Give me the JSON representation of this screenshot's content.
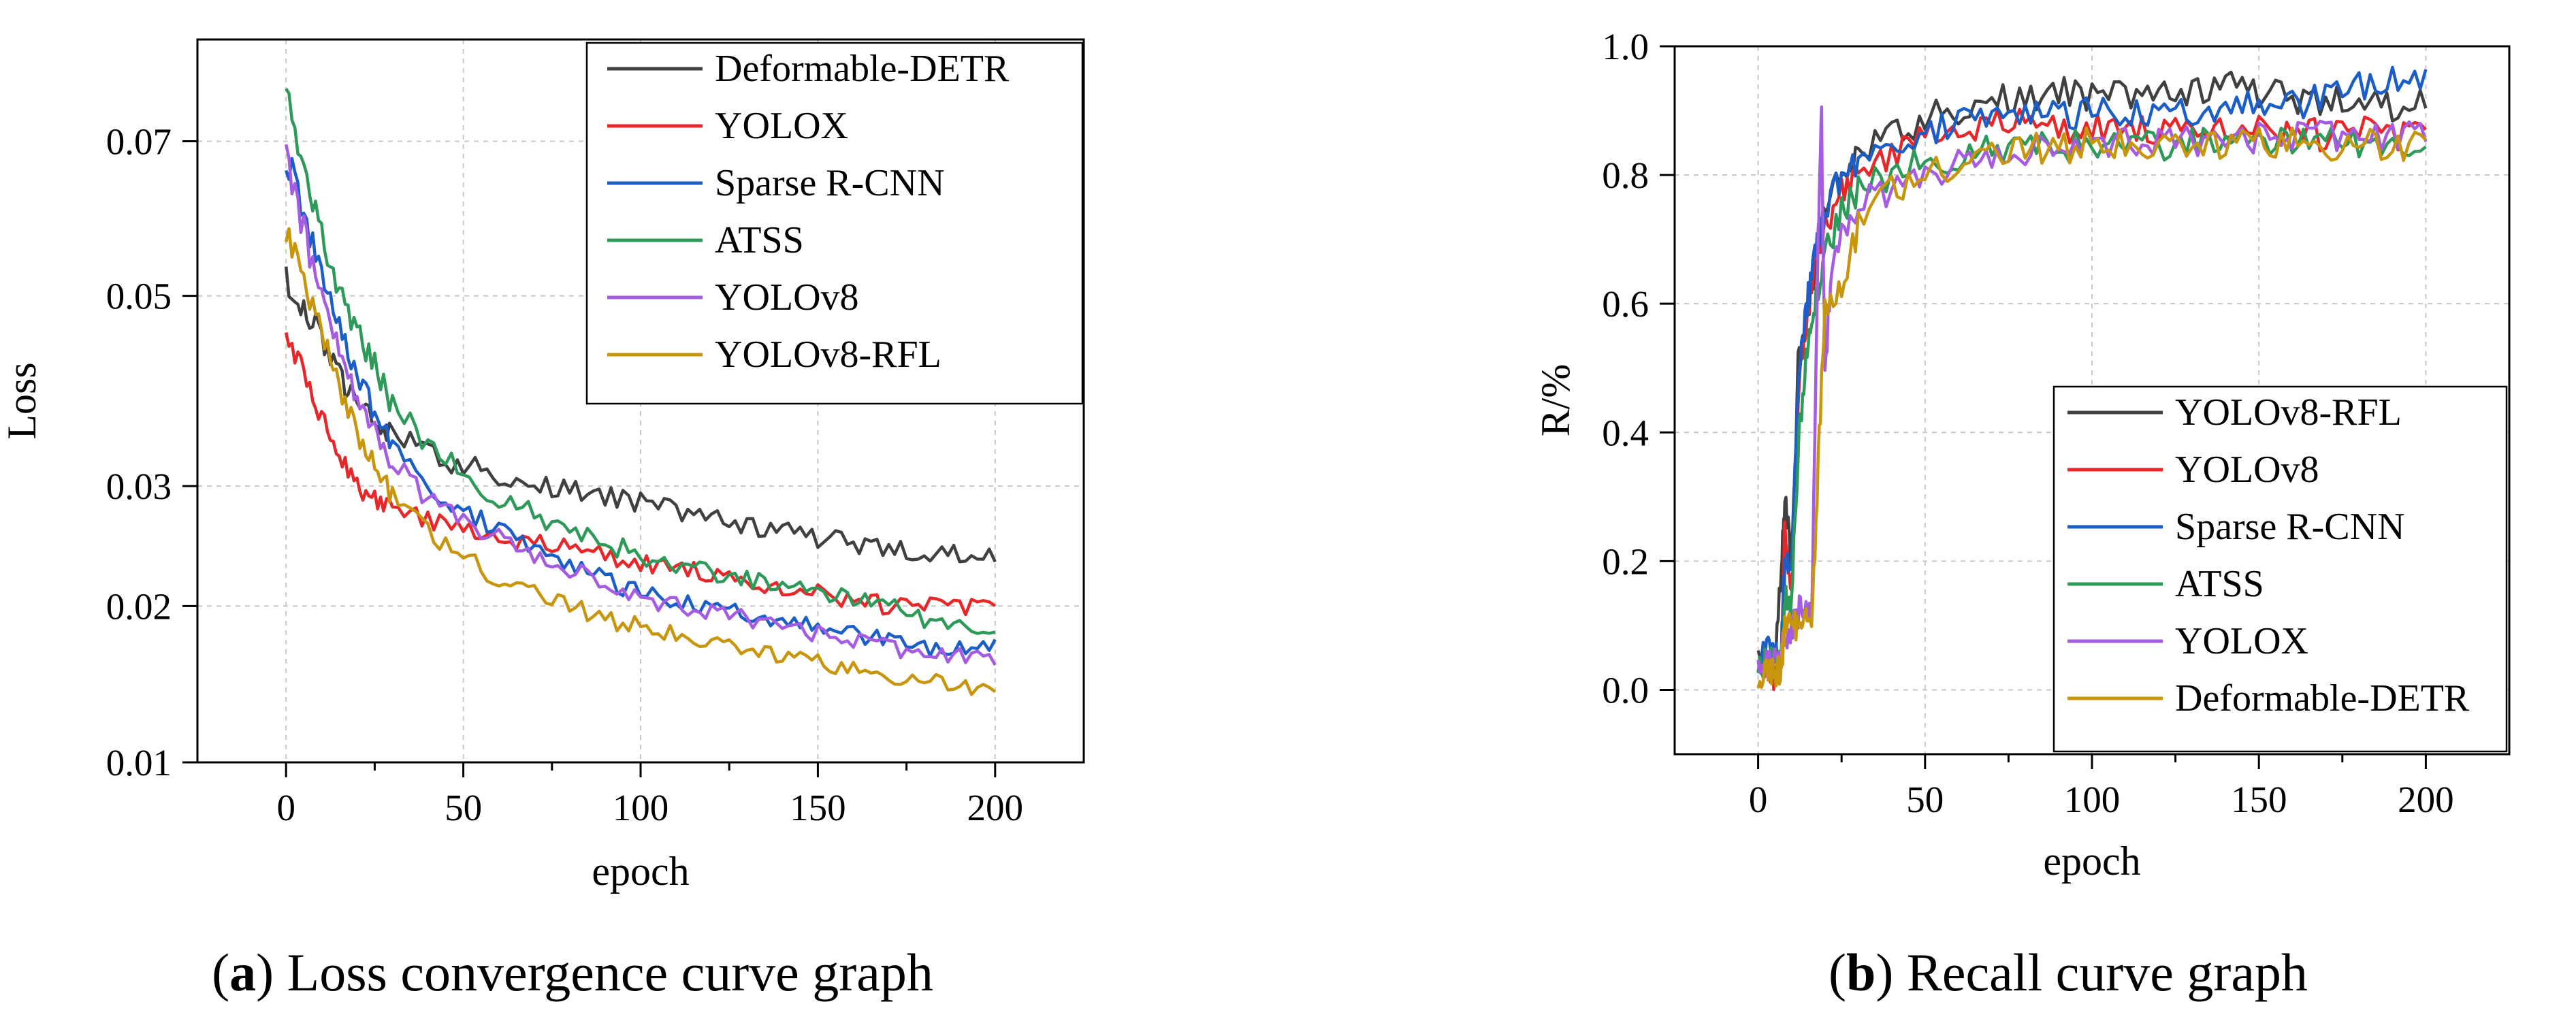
{
  "chart_data": [
    {
      "type": "line",
      "id": "a",
      "caption_letter": "a",
      "caption_text": ") Loss convergence curve graph",
      "caption_paren": "(",
      "title": "",
      "xlabel": "epoch",
      "ylabel": "Loss",
      "xlim": [
        -25,
        225
      ],
      "ylim": [
        0.01,
        0.085
      ],
      "y_scale": "sqrt",
      "xticks": [
        0,
        50,
        100,
        150,
        200
      ],
      "yticks": [
        0.01,
        0.02,
        0.03,
        0.05,
        0.07
      ],
      "ytick_labels": [
        "0.01",
        "0.02",
        "0.03",
        "0.05",
        "0.07"
      ],
      "grid": true,
      "legend_position": "top-right",
      "series": [
        {
          "name": "Deformable-DETR",
          "color": "#404040",
          "x": [
            0,
            5,
            10,
            15,
            20,
            25,
            30,
            40,
            50,
            60,
            70,
            80,
            90,
            100,
            110,
            120,
            130,
            140,
            150,
            160,
            170,
            180,
            190,
            200
          ],
          "values": [
            0.052,
            0.049,
            0.045,
            0.041,
            0.038,
            0.036,
            0.035,
            0.033,
            0.032,
            0.031,
            0.03,
            0.0295,
            0.029,
            0.0285,
            0.028,
            0.027,
            0.0265,
            0.026,
            0.0255,
            0.025,
            0.0245,
            0.024,
            0.024,
            0.024
          ]
        },
        {
          "name": "YOLOX",
          "color": "#e8272b",
          "x": [
            0,
            5,
            10,
            15,
            20,
            25,
            30,
            40,
            50,
            60,
            70,
            80,
            90,
            100,
            110,
            120,
            130,
            140,
            150,
            160,
            170,
            180,
            190,
            200
          ],
          "values": [
            0.045,
            0.041,
            0.037,
            0.033,
            0.03,
            0.029,
            0.028,
            0.027,
            0.026,
            0.0255,
            0.025,
            0.0245,
            0.024,
            0.0235,
            0.023,
            0.0225,
            0.022,
            0.0215,
            0.021,
            0.0205,
            0.02,
            0.02,
            0.02,
            0.02
          ]
        },
        {
          "name": "Sparse R-CNN",
          "color": "#1c5ec8",
          "x": [
            0,
            5,
            10,
            15,
            20,
            25,
            30,
            40,
            50,
            60,
            70,
            80,
            90,
            100,
            110,
            120,
            130,
            140,
            150,
            160,
            170,
            180,
            190,
            200
          ],
          "values": [
            0.068,
            0.06,
            0.052,
            0.046,
            0.041,
            0.037,
            0.034,
            0.03,
            0.028,
            0.026,
            0.0245,
            0.023,
            0.022,
            0.021,
            0.0205,
            0.02,
            0.0195,
            0.019,
            0.0185,
            0.018,
            0.0175,
            0.017,
            0.017,
            0.017
          ]
        },
        {
          "name": "ATSS",
          "color": "#2e9a5a",
          "x": [
            0,
            5,
            10,
            15,
            20,
            25,
            30,
            40,
            50,
            60,
            70,
            80,
            90,
            100,
            110,
            120,
            130,
            140,
            150,
            160,
            170,
            180,
            190,
            200
          ],
          "values": [
            0.078,
            0.066,
            0.058,
            0.051,
            0.046,
            0.042,
            0.038,
            0.034,
            0.031,
            0.029,
            0.0275,
            0.026,
            0.025,
            0.024,
            0.023,
            0.0225,
            0.022,
            0.0215,
            0.021,
            0.0205,
            0.02,
            0.019,
            0.0185,
            0.018
          ]
        },
        {
          "name": "YOLOv8",
          "color": "#a65be3",
          "x": [
            0,
            5,
            10,
            15,
            20,
            25,
            30,
            40,
            50,
            60,
            70,
            80,
            90,
            100,
            110,
            120,
            130,
            140,
            150,
            160,
            170,
            180,
            190,
            200
          ],
          "values": [
            0.068,
            0.058,
            0.05,
            0.044,
            0.039,
            0.035,
            0.032,
            0.029,
            0.027,
            0.0255,
            0.024,
            0.023,
            0.0215,
            0.0205,
            0.02,
            0.0195,
            0.019,
            0.0185,
            0.018,
            0.0175,
            0.017,
            0.0165,
            0.0165,
            0.016
          ]
        },
        {
          "name": "YOLOv8-RFL",
          "color": "#c8960c",
          "x": [
            0,
            5,
            10,
            15,
            20,
            25,
            30,
            40,
            50,
            60,
            70,
            80,
            90,
            100,
            110,
            120,
            130,
            140,
            150,
            160,
            170,
            180,
            190,
            200
          ],
          "values": [
            0.058,
            0.052,
            0.046,
            0.04,
            0.035,
            0.032,
            0.029,
            0.026,
            0.024,
            0.022,
            0.021,
            0.02,
            0.019,
            0.0185,
            0.018,
            0.0175,
            0.017,
            0.0165,
            0.016,
            0.0155,
            0.015,
            0.0148,
            0.0145,
            0.014
          ]
        }
      ]
    },
    {
      "type": "line",
      "id": "b",
      "caption_letter": "b",
      "caption_text": ") Recall curve graph",
      "caption_paren": "(",
      "title": "",
      "xlabel": "epoch",
      "ylabel": "R/%",
      "xlim": [
        -25,
        225
      ],
      "ylim": [
        -0.1,
        1.0
      ],
      "xticks": [
        0,
        50,
        100,
        150,
        200
      ],
      "yticks": [
        0.0,
        0.2,
        0.4,
        0.6,
        0.8,
        1.0
      ],
      "ytick_labels": [
        "0.0",
        "0.2",
        "0.4",
        "0.6",
        "0.8",
        "1.0"
      ],
      "grid": true,
      "legend_position": "bottom-right",
      "series": [
        {
          "name": "YOLOv8-RFL",
          "color": "#404040",
          "x": [
            0,
            3,
            5,
            7,
            8,
            10,
            12,
            14,
            16,
            18,
            20,
            25,
            30,
            40,
            50,
            60,
            70,
            80,
            90,
            100,
            110,
            120,
            130,
            140,
            150,
            160,
            170,
            180,
            190,
            200
          ],
          "values": [
            0.04,
            0.06,
            0.05,
            0.2,
            0.29,
            0.2,
            0.5,
            0.55,
            0.62,
            0.7,
            0.74,
            0.8,
            0.83,
            0.86,
            0.89,
            0.9,
            0.92,
            0.91,
            0.93,
            0.92,
            0.93,
            0.92,
            0.93,
            0.94,
            0.93,
            0.92,
            0.91,
            0.92,
            0.9,
            0.92
          ]
        },
        {
          "name": "YOLOv8",
          "color": "#e8272b",
          "x": [
            0,
            3,
            5,
            7,
            8,
            10,
            12,
            14,
            16,
            18,
            20,
            25,
            30,
            40,
            50,
            60,
            70,
            80,
            90,
            100,
            110,
            120,
            130,
            140,
            150,
            160,
            170,
            180,
            190,
            200
          ],
          "values": [
            0.03,
            0.04,
            0.02,
            0.05,
            0.26,
            0.15,
            0.45,
            0.55,
            0.63,
            0.68,
            0.72,
            0.78,
            0.8,
            0.83,
            0.86,
            0.87,
            0.88,
            0.88,
            0.87,
            0.88,
            0.87,
            0.87,
            0.88,
            0.88,
            0.87,
            0.87,
            0.86,
            0.87,
            0.86,
            0.87
          ]
        },
        {
          "name": "Sparse R-CNN",
          "color": "#1c5ec8",
          "x": [
            0,
            3,
            5,
            7,
            8,
            10,
            12,
            14,
            16,
            18,
            20,
            25,
            30,
            40,
            50,
            60,
            70,
            80,
            90,
            100,
            110,
            120,
            130,
            140,
            150,
            160,
            170,
            180,
            190,
            200
          ],
          "values": [
            0.05,
            0.06,
            0.05,
            0.06,
            0.2,
            0.18,
            0.48,
            0.58,
            0.64,
            0.7,
            0.74,
            0.8,
            0.82,
            0.85,
            0.87,
            0.88,
            0.89,
            0.89,
            0.89,
            0.9,
            0.9,
            0.9,
            0.9,
            0.91,
            0.91,
            0.91,
            0.92,
            0.94,
            0.95,
            0.94
          ]
        },
        {
          "name": "ATSS",
          "color": "#2e9a5a",
          "x": [
            0,
            3,
            5,
            7,
            8,
            10,
            12,
            14,
            16,
            18,
            20,
            25,
            30,
            40,
            50,
            60,
            70,
            80,
            90,
            100,
            110,
            120,
            130,
            140,
            150,
            160,
            170,
            180,
            190,
            200
          ],
          "values": [
            0.03,
            0.05,
            0.04,
            0.05,
            0.15,
            0.13,
            0.38,
            0.5,
            0.57,
            0.63,
            0.68,
            0.74,
            0.78,
            0.8,
            0.82,
            0.83,
            0.84,
            0.85,
            0.84,
            0.85,
            0.85,
            0.84,
            0.85,
            0.85,
            0.85,
            0.85,
            0.85,
            0.85,
            0.84,
            0.84
          ]
        },
        {
          "name": "YOLOX",
          "color": "#a65be3",
          "x": [
            0,
            3,
            5,
            7,
            8,
            10,
            12,
            14,
            16,
            18,
            19,
            20,
            22,
            25,
            30,
            40,
            50,
            60,
            70,
            80,
            90,
            100,
            110,
            120,
            130,
            140,
            150,
            160,
            170,
            180,
            190,
            200
          ],
          "values": [
            0.03,
            0.05,
            0.04,
            0.06,
            0.08,
            0.1,
            0.12,
            0.13,
            0.11,
            0.7,
            0.89,
            0.5,
            0.65,
            0.7,
            0.75,
            0.78,
            0.8,
            0.82,
            0.83,
            0.84,
            0.84,
            0.85,
            0.85,
            0.85,
            0.85,
            0.85,
            0.86,
            0.86,
            0.86,
            0.86,
            0.86,
            0.86
          ]
        },
        {
          "name": "Deformable-DETR",
          "color": "#c8960c",
          "x": [
            0,
            3,
            5,
            7,
            8,
            10,
            12,
            14,
            16,
            18,
            20,
            25,
            30,
            40,
            50,
            60,
            70,
            80,
            90,
            100,
            110,
            120,
            130,
            140,
            150,
            160,
            170,
            180,
            190,
            200
          ],
          "values": [
            0.02,
            0.03,
            0.02,
            0.04,
            0.09,
            0.1,
            0.1,
            0.11,
            0.1,
            0.35,
            0.6,
            0.62,
            0.72,
            0.78,
            0.8,
            0.82,
            0.83,
            0.84,
            0.84,
            0.85,
            0.85,
            0.85,
            0.85,
            0.85,
            0.85,
            0.85,
            0.84,
            0.85,
            0.84,
            0.85
          ]
        }
      ]
    }
  ]
}
